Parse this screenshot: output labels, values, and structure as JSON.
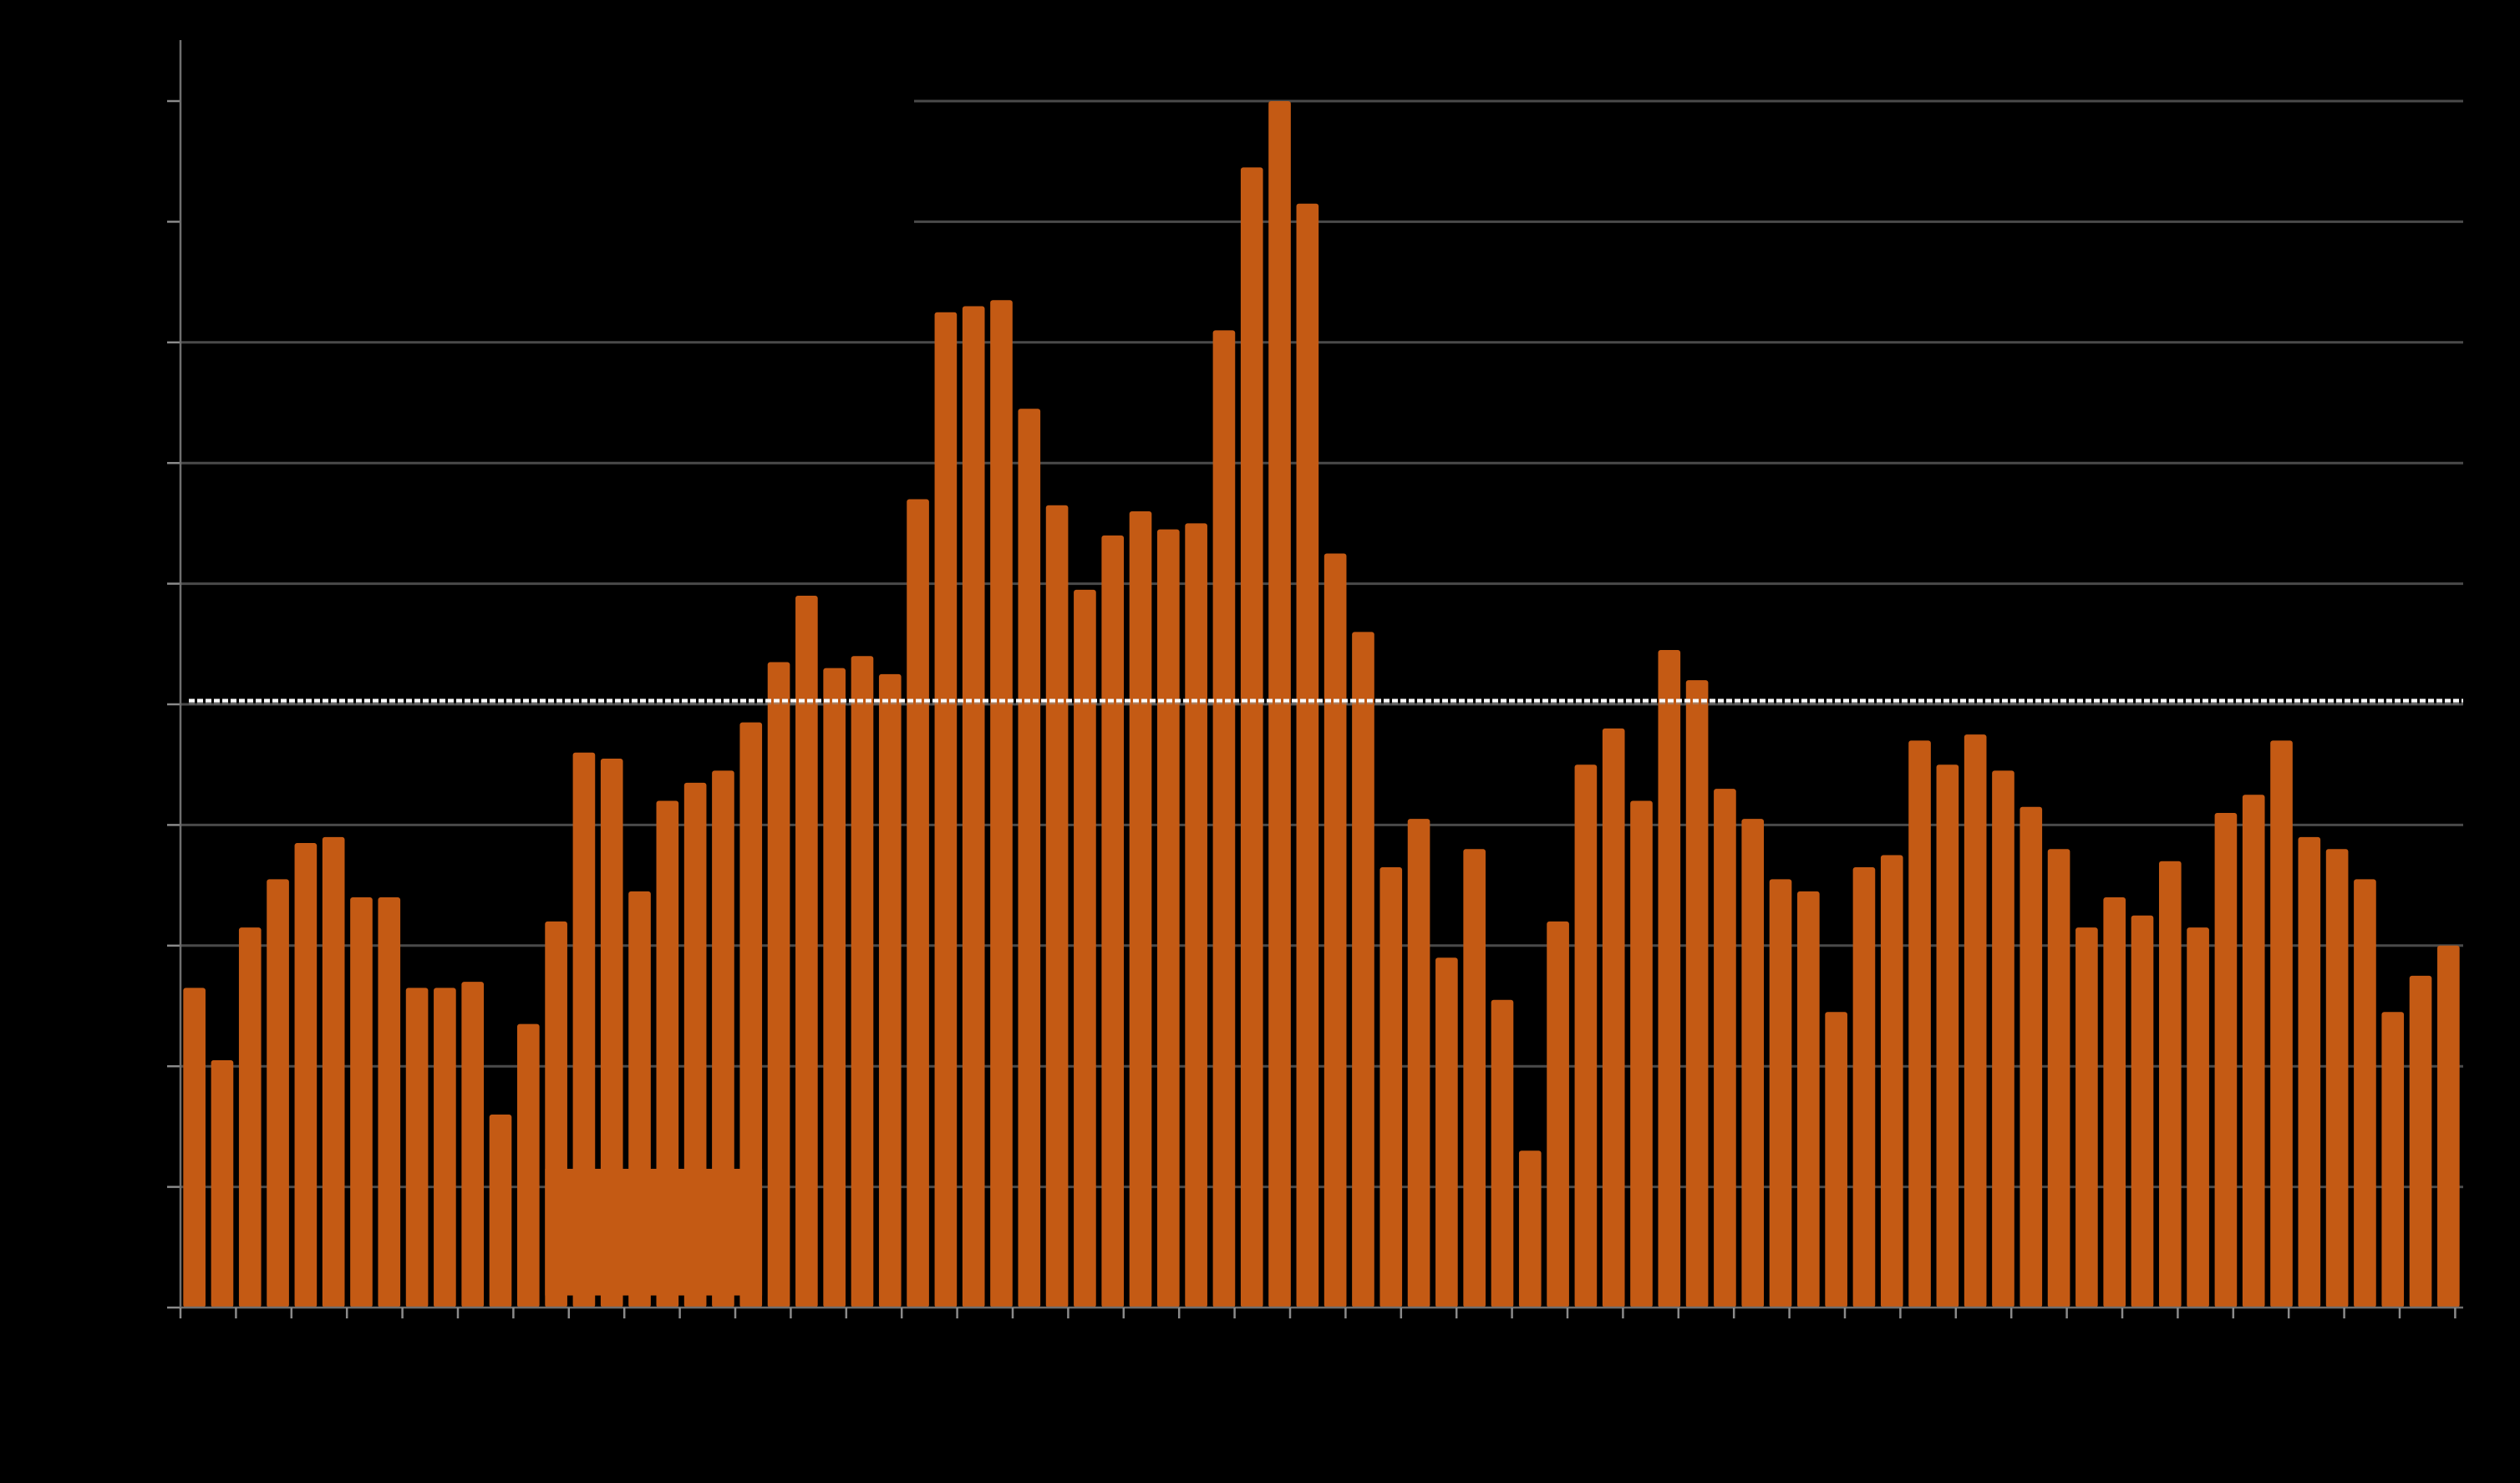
{
  "chart_data": {
    "type": "bar",
    "title": "",
    "xlabel": "",
    "ylabel": "",
    "ylim": [
      0,
      10.5
    ],
    "y_ticks": [
      0,
      1,
      2,
      3,
      4,
      5,
      6,
      7,
      8,
      9,
      10
    ],
    "grid": "horizontal",
    "reference_line": {
      "value": 5.03,
      "style": "dashed",
      "color": "#ffffff"
    },
    "bar_color": "#c45a14",
    "background": "#000000",
    "tick_labels_visible": false,
    "values": [
      2.65,
      2.05,
      3.15,
      3.55,
      3.85,
      3.9,
      3.4,
      3.4,
      2.65,
      2.65,
      2.7,
      1.6,
      2.35,
      3.2,
      4.6,
      4.55,
      3.45,
      4.2,
      4.35,
      4.45,
      4.85,
      5.35,
      5.9,
      5.3,
      5.4,
      5.25,
      6.7,
      8.25,
      8.3,
      8.35,
      7.45,
      6.65,
      5.95,
      6.4,
      6.6,
      6.45,
      6.5,
      8.1,
      9.45,
      10.0,
      9.15,
      6.25,
      5.6,
      3.65,
      4.05,
      2.9,
      3.8,
      2.55,
      1.3,
      3.2,
      4.5,
      4.8,
      4.2,
      5.45,
      5.2,
      4.3,
      4.05,
      3.55,
      3.45,
      2.45,
      3.65,
      3.75,
      4.7,
      4.5,
      4.75,
      4.45,
      4.15,
      3.8,
      3.15,
      3.4,
      3.25,
      3.7,
      3.15,
      4.1,
      4.25,
      4.7,
      3.9,
      3.8,
      3.55,
      2.45,
      2.75,
      3.0
    ],
    "highlight_block": {
      "from_index": 13,
      "to_index": 20,
      "value_from": 0.1,
      "value_to": 1.15,
      "color": "#c45a14"
    }
  }
}
